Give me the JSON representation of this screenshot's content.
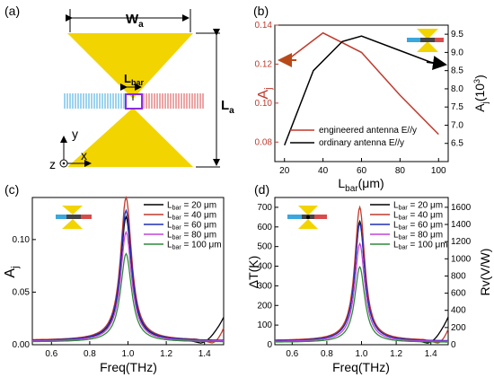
{
  "panels": {
    "a": {
      "label": "(a)",
      "width_label": "W",
      "width_sub": "a",
      "length_label": "L",
      "length_sub": "a",
      "bar_label": "L",
      "bar_sub": "bar",
      "axis_y": "y",
      "axis_x": "x",
      "axis_z": "z"
    },
    "b": {
      "label": "(b)"
    },
    "c": {
      "label": "(c)"
    },
    "d": {
      "label": "(d)"
    }
  },
  "colors": {
    "antenna": "#f2d400",
    "blue_lines": "#3aa7dd",
    "red_lines": "#d84b4b",
    "bar_box": "#8a2be2",
    "c20": "#000000",
    "c40": "#c0392b",
    "c60": "#1f2fb5",
    "c80": "#c145d8",
    "c100": "#2e8b3a",
    "red_series": "#c0392b",
    "black_series": "#000000"
  },
  "chart_data": [
    {
      "id": "b",
      "type": "line",
      "xlabel": "L",
      "xlabel_sub": "bar",
      "xlabel_unit": "(μm)",
      "ylabel_left": "A",
      "ylabel_left_sub": "j",
      "ylabel_right": "A",
      "ylabel_right_sub": "j",
      "ylabel_right_unit": "(10",
      "ylabel_right_sup": "3",
      "ylabel_right_close": ")",
      "xlim": [
        15,
        105
      ],
      "ylim_left": [
        0.07,
        0.14
      ],
      "ylim_right": [
        6.0,
        9.75
      ],
      "xticks": [
        "20",
        "40",
        "60",
        "80",
        "100"
      ],
      "yticks_left": [
        "0.08",
        "0.10",
        "0.12",
        "0.14"
      ],
      "yticks_right": [
        "6.5",
        "7.0",
        "7.5",
        "8.0",
        "8.5",
        "9.0",
        "9.5"
      ],
      "x": [
        20,
        40,
        60,
        80,
        100
      ],
      "series": [
        {
          "name": "engineered antenna E//y",
          "axis": "left",
          "values": [
            0.121,
            0.136,
            0.126,
            0.104,
            0.084
          ]
        },
        {
          "name": "ordinary antenna E//y",
          "axis": "right",
          "x": [
            20,
            35,
            50,
            60,
            80,
            100
          ],
          "values": [
            6.45,
            8.5,
            9.3,
            9.45,
            9.05,
            8.65
          ]
        }
      ],
      "legend": "bottom-right"
    },
    {
      "id": "c",
      "type": "line",
      "xlabel": "Freq(THz)",
      "ylabel": "A",
      "ylabel_sub": "j",
      "xlim": [
        0.5,
        1.5
      ],
      "ylim": [
        0,
        0.14
      ],
      "xticks": [
        "0.6",
        "0.8",
        "1.0",
        "1.2",
        "1.4"
      ],
      "yticks": [
        "0.00",
        "0.05",
        "0.10"
      ],
      "series": [
        {
          "name": "= 20 μm",
          "peak": 0.118
        },
        {
          "name": "= 40 μm",
          "peak": 0.136
        },
        {
          "name": "= 60 μm",
          "peak": 0.124
        },
        {
          "name": "= 80 μm",
          "peak": 0.104
        },
        {
          "name": "= 100 μm",
          "peak": 0.084
        }
      ],
      "legend_prefix": "L",
      "legend_prefix_sub": "bar",
      "legend": "top-right"
    },
    {
      "id": "d",
      "type": "line",
      "xlabel": "Freq(THz)",
      "ylabel_left": "ΔT(K)",
      "ylabel_right": "Rv(V/W)",
      "xlim": [
        0.5,
        1.5
      ],
      "ylim_left": [
        0,
        750
      ],
      "ylim_right": [
        0,
        1714
      ],
      "xticks": [
        "0.6",
        "0.8",
        "1.0",
        "1.2",
        "1.4"
      ],
      "yticks_left": [
        "0",
        "100",
        "200",
        "300",
        "400",
        "500",
        "600",
        "700"
      ],
      "yticks_right": [
        "0",
        "200",
        "400",
        "600",
        "800",
        "1000",
        "1200",
        "1400",
        "1600"
      ],
      "series": [
        {
          "name": "= 20 μm",
          "peak": 610
        },
        {
          "name": "= 40 μm",
          "peak": 680
        },
        {
          "name": "= 60 μm",
          "peak": 600
        },
        {
          "name": "= 80 μm",
          "peak": 500
        },
        {
          "name": "= 100 μm",
          "peak": 385
        }
      ],
      "legend_prefix": "L",
      "legend_prefix_sub": "bar",
      "legend": "top-right"
    }
  ]
}
